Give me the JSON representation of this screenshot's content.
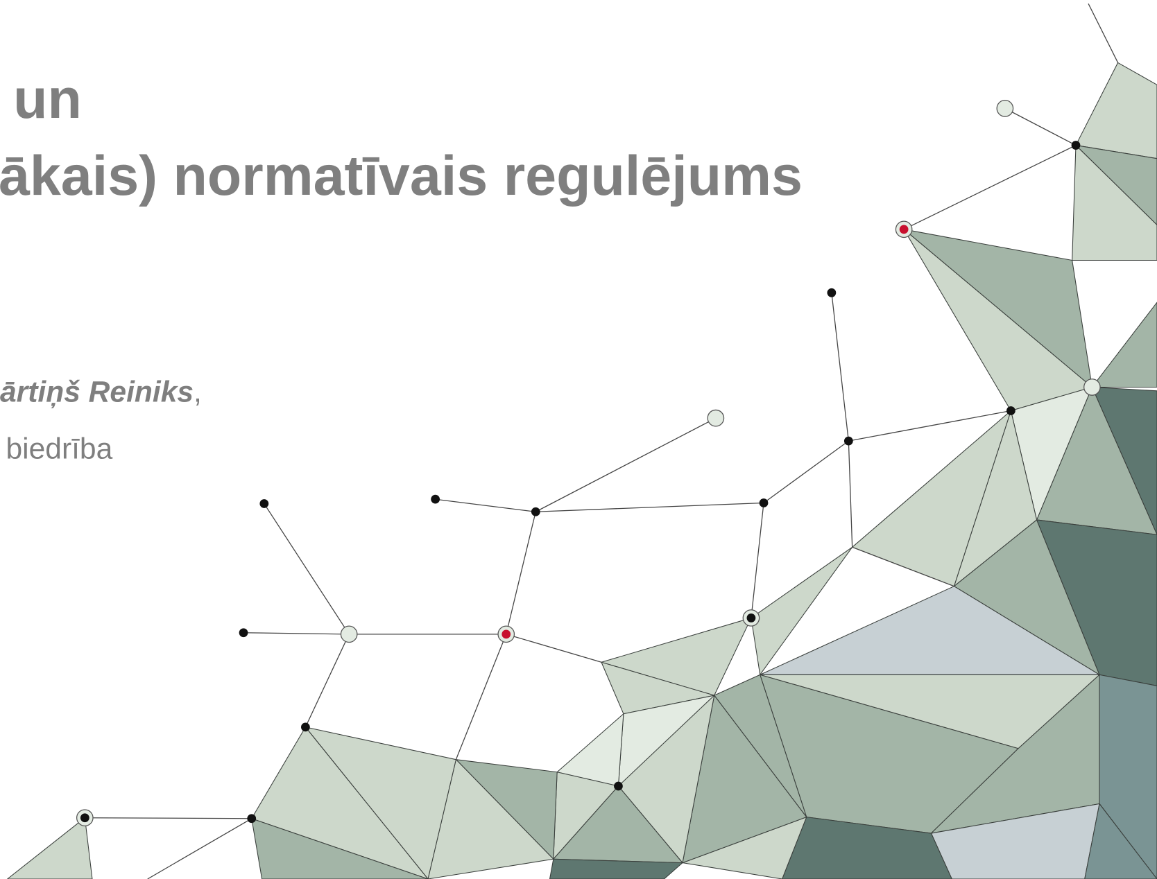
{
  "title": {
    "line1": "un",
    "line2": "ākais) normatīvais regulējums"
  },
  "author": {
    "name": "ārtiņš Reiniks",
    "suffix": ","
  },
  "organization": "biedrība"
}
